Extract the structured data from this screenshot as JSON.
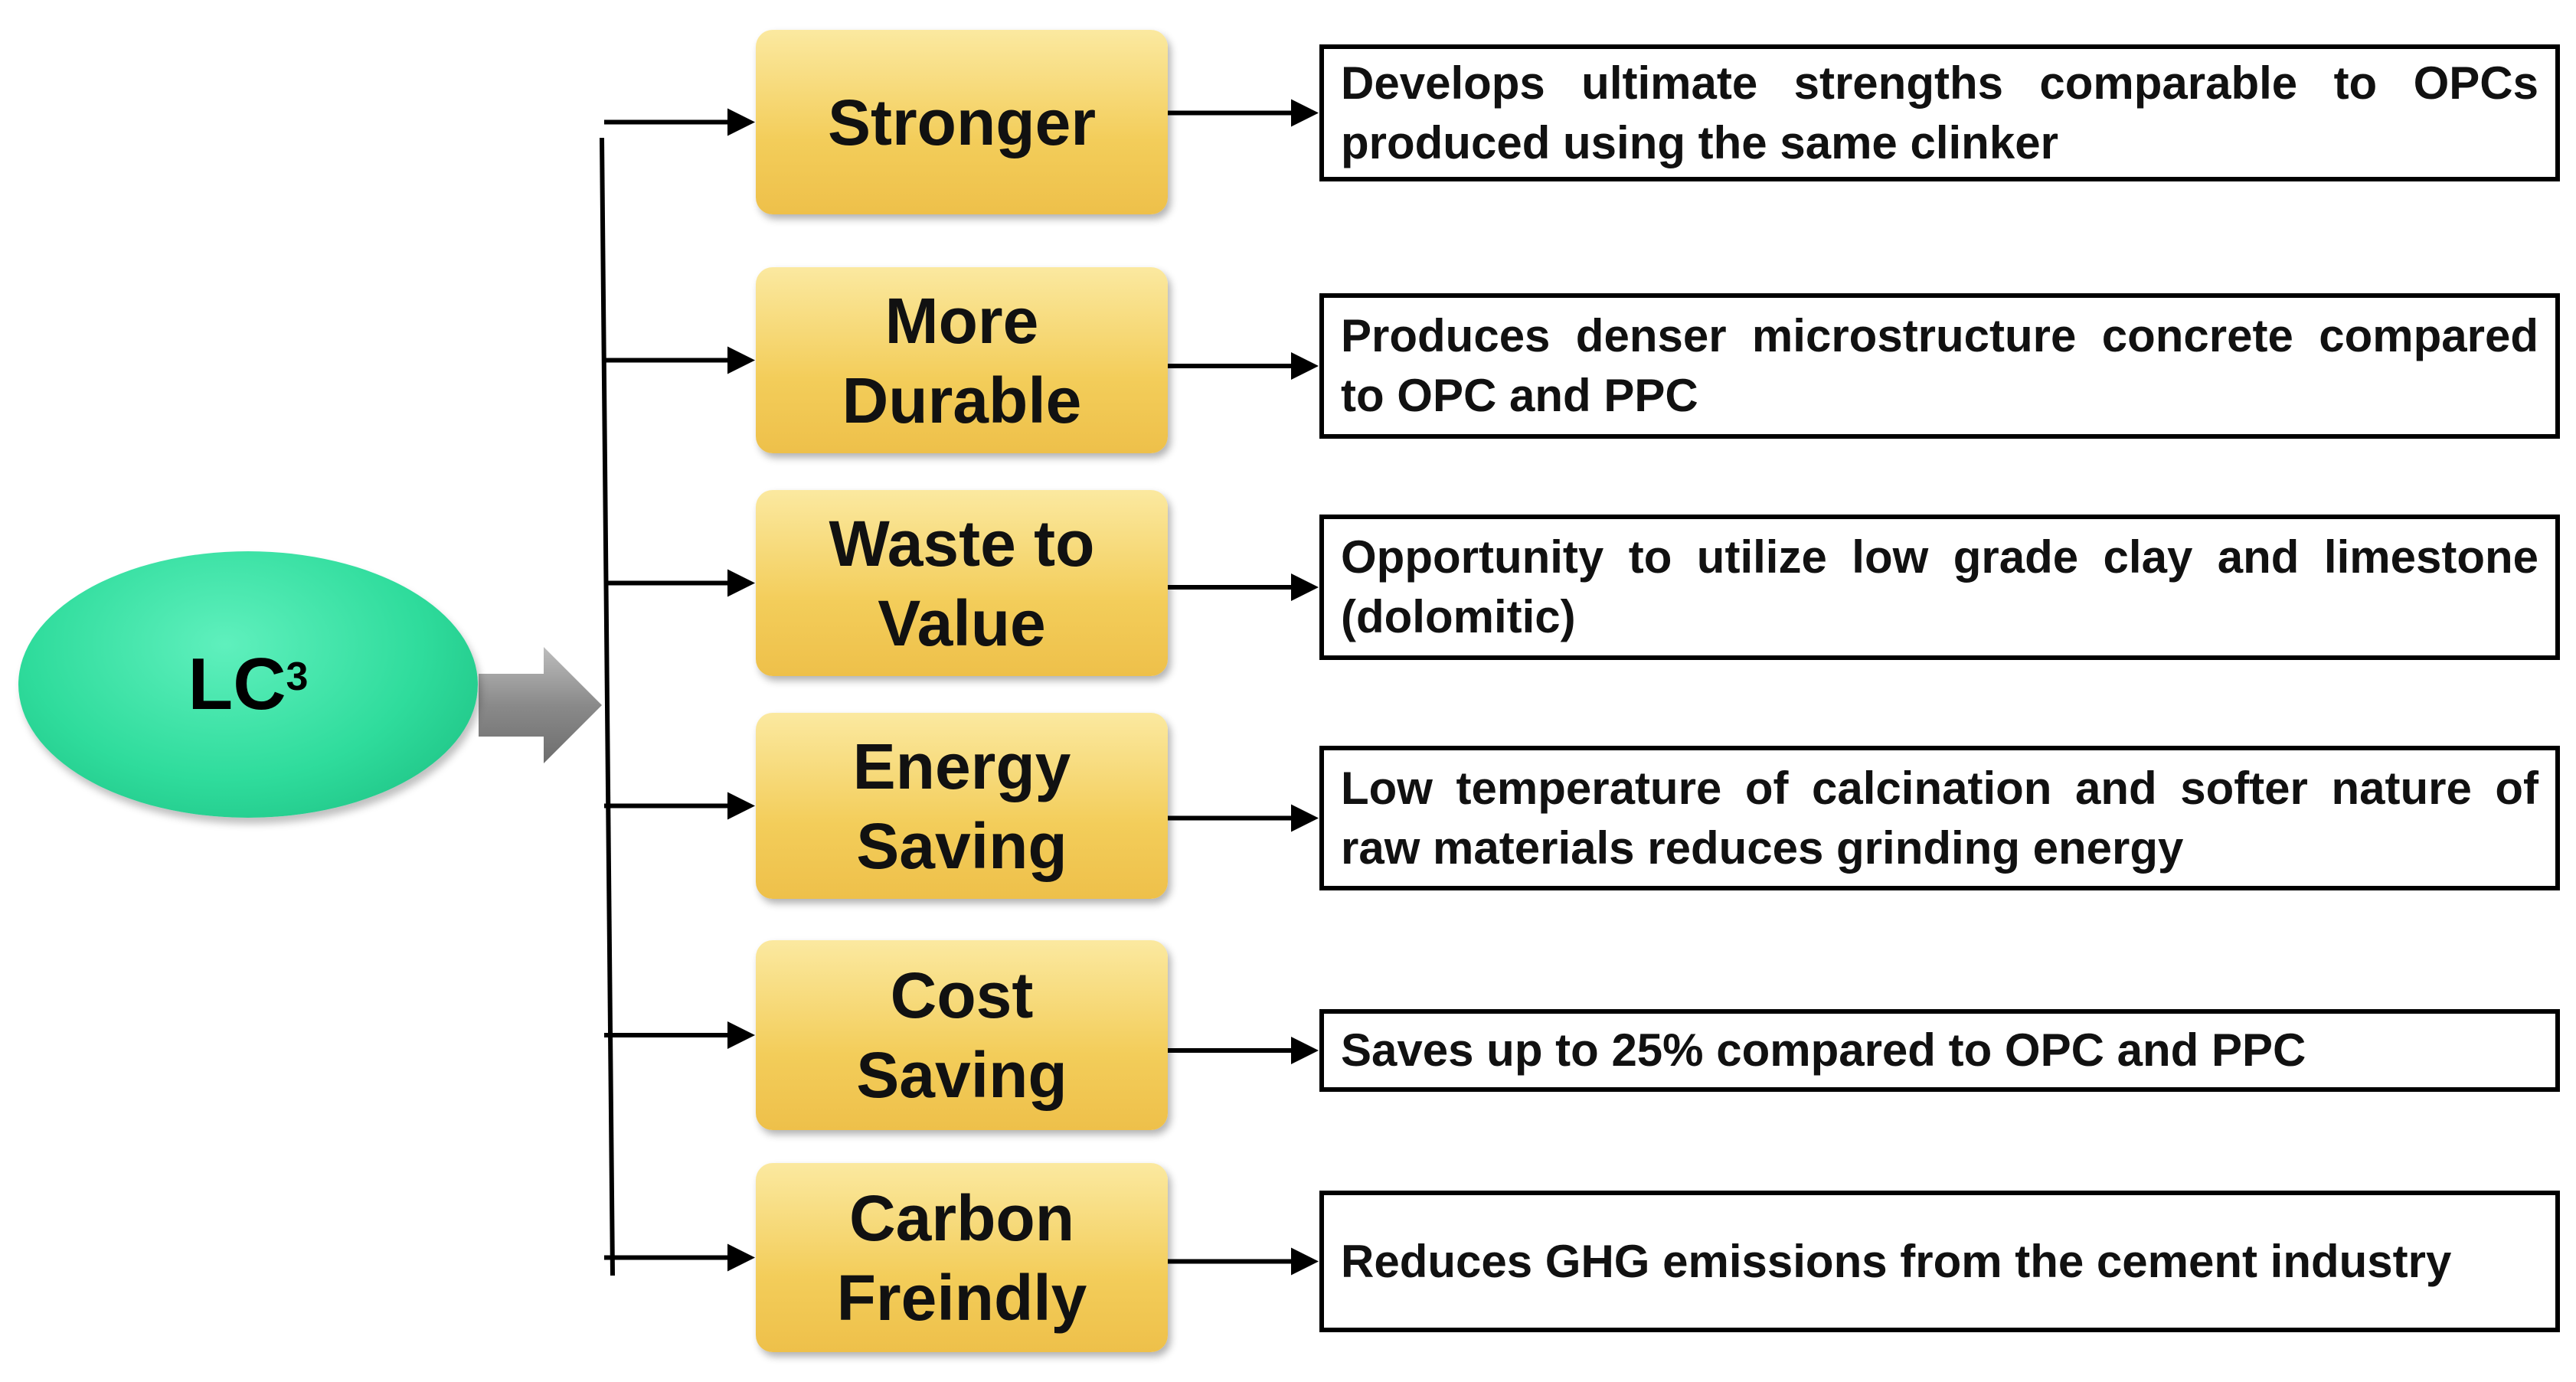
{
  "root": {
    "label": "LC",
    "superscript": "3"
  },
  "nodes": [
    {
      "label": [
        "Stronger"
      ],
      "description": "Develops ultimate strengths comparable to OPCs produced using the same clinker"
    },
    {
      "label": [
        "More",
        "Durable"
      ],
      "description": "Produces denser microstructure concrete compared to OPC and PPC"
    },
    {
      "label": [
        "Waste to",
        "Value"
      ],
      "description": "Opportunity to utilize low grade clay and limestone (dolomitic)"
    },
    {
      "label": [
        "Energy",
        "Saving"
      ],
      "description": "Low temperature of calcination and softer nature of raw materials reduces grinding energy"
    },
    {
      "label": [
        "Cost",
        "Saving"
      ],
      "description": "Saves up to 25% compared to OPC and PPC"
    },
    {
      "label": [
        "Carbon",
        "Freindly"
      ],
      "description": "Reduces GHG emissions from the cement industry"
    }
  ]
}
